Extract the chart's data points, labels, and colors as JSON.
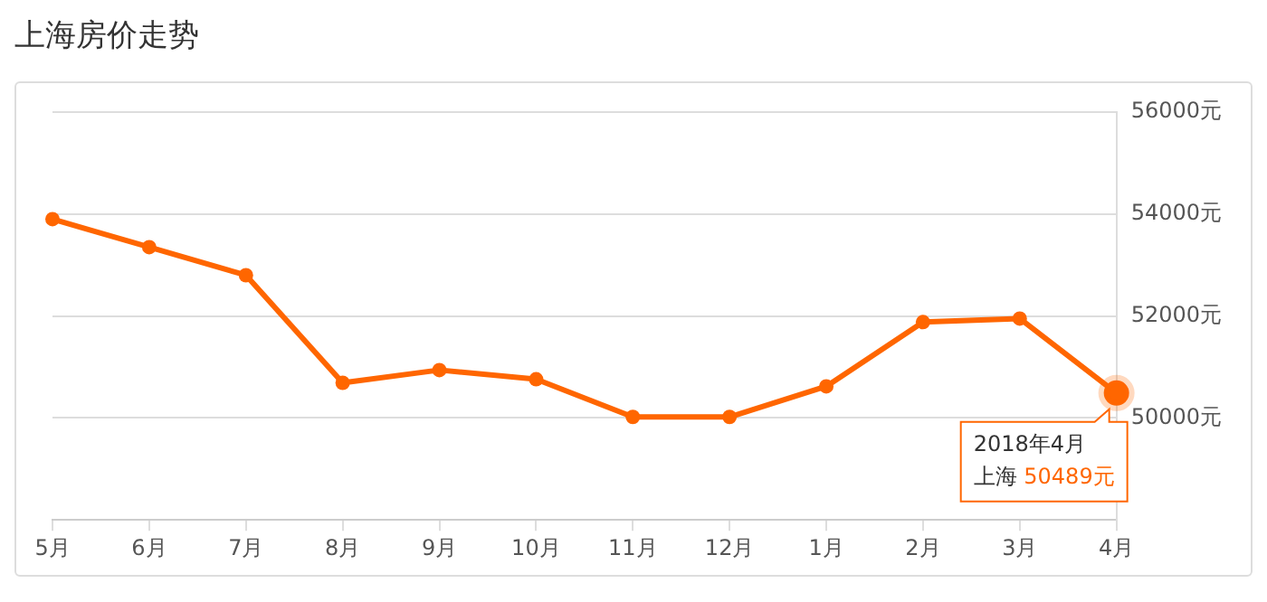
{
  "chart_data": {
    "type": "line",
    "title": "上海房价走势",
    "categories": [
      "5月",
      "6月",
      "7月",
      "8月",
      "9月",
      "10月",
      "11月",
      "12月",
      "1月",
      "2月",
      "3月",
      "4月"
    ],
    "series": [
      {
        "name": "上海",
        "color": "#ff6600",
        "values": [
          53900,
          53350,
          52800,
          50690,
          50940,
          50760,
          50020,
          50020,
          50620,
          51880,
          51950,
          50489
        ],
        "value_labels": [
          null,
          null,
          null,
          null,
          null,
          null,
          null,
          null,
          null,
          null,
          null,
          "50489元"
        ]
      }
    ],
    "ylim": [
      48000,
      56000
    ],
    "yticks": [
      {
        "value": 50000,
        "label": "50000元"
      },
      {
        "value": 52000,
        "label": "52000元"
      },
      {
        "value": 54000,
        "label": "54000元"
      },
      {
        "value": 56000,
        "label": "56000元"
      }
    ],
    "annotations": [
      {
        "text": "2018年4月",
        "x": "4月",
        "y": 50489
      }
    ],
    "grid": "y",
    "legend": false,
    "marker": "circle",
    "line_style": "solid"
  }
}
